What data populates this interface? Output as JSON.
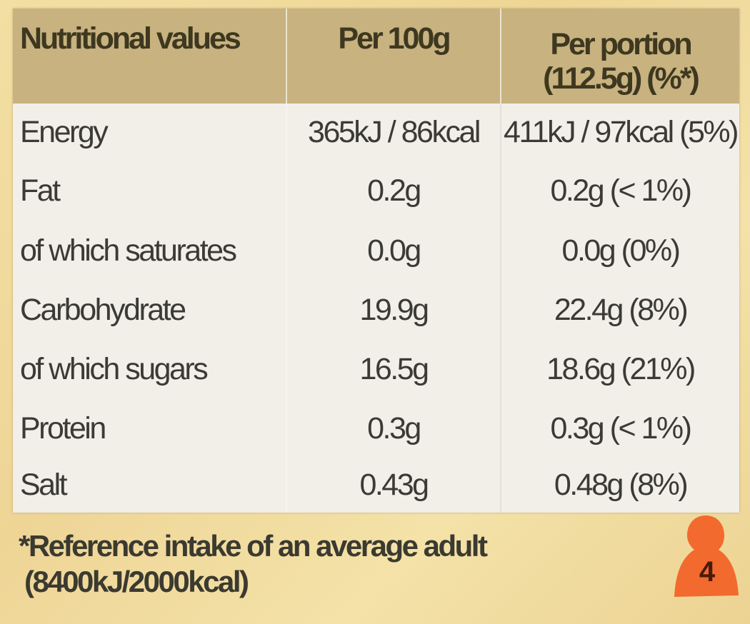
{
  "table": {
    "headers": [
      "Nutritional values",
      "Per 100g",
      "Per portion",
      "(112.5g) (%*)"
    ],
    "rows": [
      {
        "label": "Energy",
        "per100g": "365kJ / 86kcal",
        "perPortion": "411kJ / 97kcal (5%)"
      },
      {
        "label": "Fat",
        "per100g": "0.2g",
        "perPortion": "0.2g (< 1%)"
      },
      {
        "label": "of which saturates",
        "per100g": "0.0g",
        "perPortion": "0.0g (0%)"
      },
      {
        "label": "Carbohydrate",
        "per100g": "19.9g",
        "perPortion": "22.4g (8%)"
      },
      {
        "label": "of which sugars",
        "per100g": "16.5g",
        "perPortion": "18.6g (21%)"
      },
      {
        "label": "Protein",
        "per100g": "0.3g",
        "perPortion": "0.3g (< 1%)"
      },
      {
        "label": "Salt",
        "per100g": "0.43g",
        "perPortion": "0.48g (8%)"
      }
    ]
  },
  "footnote": {
    "line1": "*Reference intake of an average adult",
    "line2": "(8400kJ/2000kcal)"
  },
  "badge": {
    "number": "4",
    "color": "#f26a2e"
  }
}
